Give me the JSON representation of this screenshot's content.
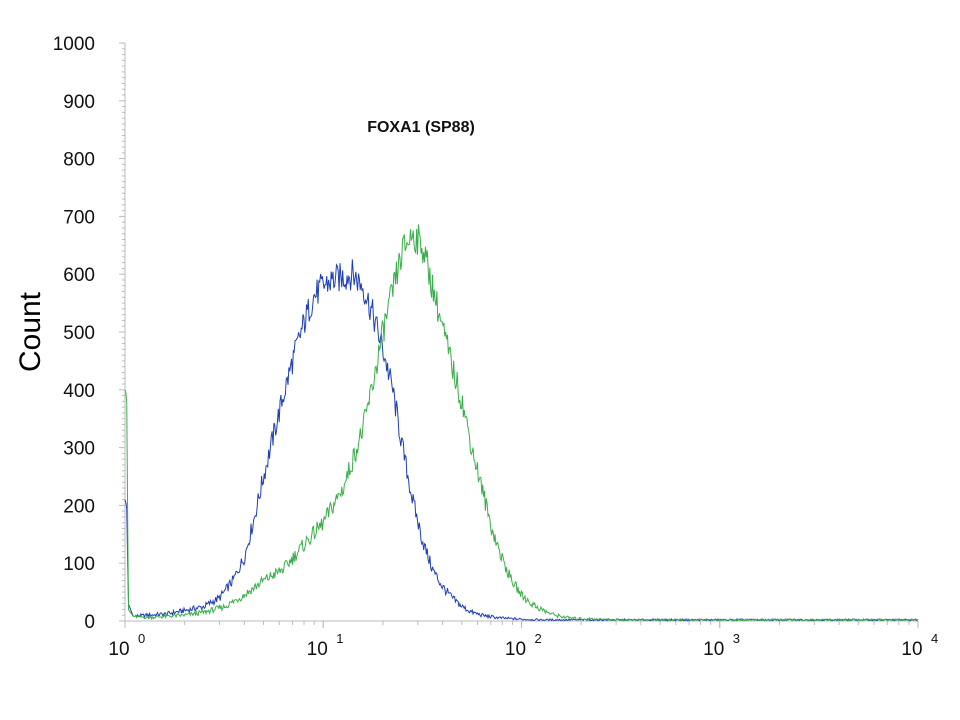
{
  "chart_data": {
    "type": "line",
    "title": "FOXA1 (SP88)",
    "xlabel": "",
    "ylabel": "Count",
    "x_scale": "log",
    "xlim": [
      1,
      10000
    ],
    "ylim": [
      0,
      1000
    ],
    "y_ticks": [
      "0",
      "100",
      "200",
      "300",
      "400",
      "500",
      "600",
      "700",
      "800",
      "900",
      "1000"
    ],
    "x_ticks": [
      {
        "base": "10",
        "exp": "0"
      },
      {
        "base": "10",
        "exp": "1"
      },
      {
        "base": "10",
        "exp": "2"
      },
      {
        "base": "10",
        "exp": "3"
      },
      {
        "base": "10",
        "exp": "4"
      }
    ],
    "grid": false,
    "legend": "none",
    "series": [
      {
        "color": "#1f3fb5",
        "x": [
          1.0,
          1.02,
          1.04,
          1.1,
          1.3,
          1.6,
          2.0,
          2.5,
          3.0,
          3.5,
          4.0,
          4.5,
          5.0,
          5.6,
          6.3,
          7.0,
          7.9,
          8.9,
          10.0,
          11.2,
          12.6,
          14.1,
          15.8,
          17.8,
          20.0,
          22.4,
          25.1,
          28.2,
          31.6,
          35.5,
          39.8,
          44.7,
          50.1,
          56.2,
          63.1,
          70.8,
          79.4,
          89.1,
          100,
          126,
          200,
          1000,
          10000
        ],
        "y": [
          210,
          200,
          30,
          8,
          10,
          12,
          18,
          25,
          40,
          70,
          110,
          180,
          250,
          320,
          390,
          450,
          510,
          560,
          580,
          590,
          595,
          600,
          580,
          530,
          470,
          400,
          300,
          210,
          140,
          90,
          60,
          40,
          25,
          15,
          10,
          7,
          5,
          4,
          3,
          2,
          2,
          2,
          2
        ]
      },
      {
        "color": "#3aae4a",
        "x": [
          1.0,
          1.02,
          1.04,
          1.1,
          1.3,
          1.6,
          2.0,
          2.5,
          3.2,
          4.0,
          5.0,
          6.3,
          7.9,
          10.0,
          12.6,
          15.8,
          17.8,
          20.0,
          22.4,
          25.1,
          28.2,
          31.6,
          35.5,
          39.8,
          44.7,
          50.1,
          56.2,
          63.1,
          70.8,
          79.4,
          89.1,
          100,
          112,
          126,
          141,
          158,
          178,
          200,
          251,
          316,
          1000,
          10000
        ],
        "y": [
          400,
          390,
          20,
          8,
          6,
          8,
          10,
          15,
          25,
          45,
          70,
          90,
          130,
          170,
          230,
          330,
          410,
          500,
          570,
          640,
          670,
          650,
          580,
          510,
          440,
          380,
          300,
          230,
          160,
          110,
          70,
          45,
          30,
          20,
          12,
          8,
          5,
          4,
          3,
          2,
          2,
          2
        ]
      }
    ]
  }
}
